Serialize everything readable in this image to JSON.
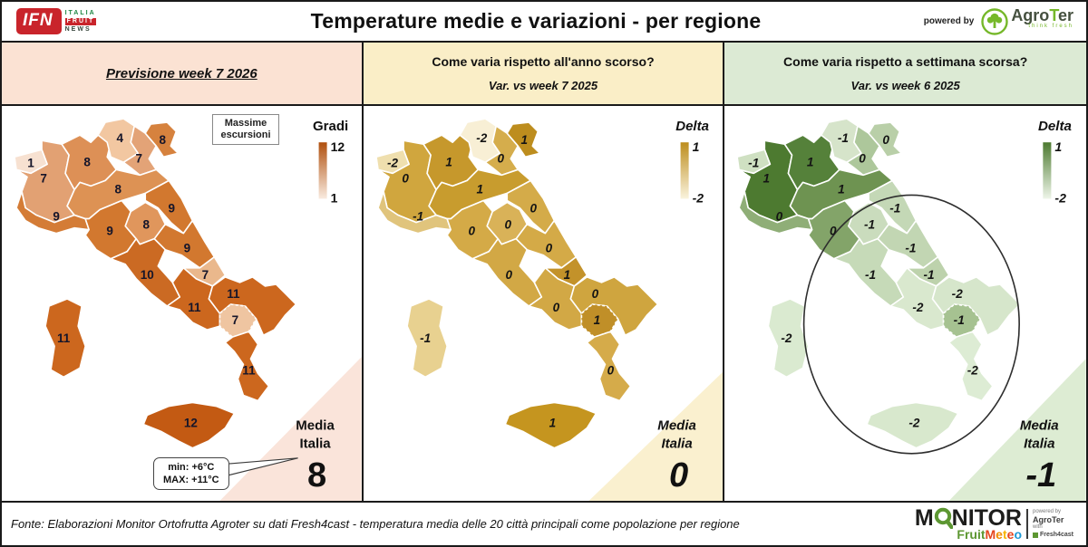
{
  "header": {
    "title": "Temperature medie e variazioni - per regione",
    "powered_by": "powered by",
    "ifn_logo": {
      "text": "IFN",
      "lines": [
        "ITALIA",
        "FRUIT",
        "NEWS"
      ],
      "red": "#c9242b",
      "green": "#1e8744",
      "dark": "#37463c"
    },
    "agroter": {
      "agro": "Agro",
      "t": "T",
      "er": "er",
      "tagline": "think fresh",
      "green": "#76b82a",
      "dark": "#45503f"
    }
  },
  "panels": [
    {
      "header": {
        "line1": "Previsione week 7 2026",
        "line2": "",
        "bg": "#fbe2d3"
      },
      "legend": {
        "title": "Gradi",
        "top_label": "12",
        "bottom_label": "1",
        "top_color": "#b0500e",
        "bottom_color": "#f9ebe0",
        "italic": false
      },
      "media": {
        "label_line1": "Media",
        "label_line2": "Italia",
        "value": "8",
        "italic": false,
        "triangle_color": "#fae4da"
      },
      "note_box": {
        "line1": "Massime",
        "line2": "escursioni"
      },
      "callout": {
        "line1": "min: +6°C",
        "line2": "MAX: +11°C"
      },
      "has_note_box": true,
      "has_callout": true,
      "has_ellipse": false,
      "label_italic": false,
      "label_color": "#15152a",
      "regions": {
        "valle_daosta": {
          "value": "1",
          "color": "#f7e1d1"
        },
        "piemonte": {
          "value": "7",
          "color": "#e2a173"
        },
        "lombardia": {
          "value": "8",
          "color": "#dd9056"
        },
        "trentino": {
          "value": "4",
          "color": "#f2c7a1"
        },
        "veneto": {
          "value": "7",
          "color": "#e3a377"
        },
        "friuli": {
          "value": "8",
          "color": "#d6823e"
        },
        "liguria": {
          "value": "9",
          "color": "#d47c36"
        },
        "emilia": {
          "value": "8",
          "color": "#dd9254"
        },
        "toscana": {
          "value": "9",
          "color": "#d2782f"
        },
        "marche": {
          "value": "9",
          "color": "#d2782f"
        },
        "umbria": {
          "value": "8",
          "color": "#e0965c"
        },
        "lazio": {
          "value": "10",
          "color": "#cb6a23"
        },
        "abruzzo": {
          "value": "9",
          "color": "#d2782f"
        },
        "molise": {
          "value": "7",
          "color": "#eab88c"
        },
        "campania": {
          "value": "11",
          "color": "#cc671e"
        },
        "puglia": {
          "value": "11",
          "color": "#cc671e"
        },
        "basilicata": {
          "value": "7",
          "color": "#efc5a1"
        },
        "calabria": {
          "value": "11",
          "color": "#cc671e"
        },
        "sicilia": {
          "value": "12",
          "color": "#c35a13"
        },
        "sardegna": {
          "value": "11",
          "color": "#cc671e"
        }
      }
    },
    {
      "header": {
        "line1": "Come varia rispetto all'anno scorso?",
        "line2": "Var. vs week 7 2025",
        "bg": "#faeec7"
      },
      "legend": {
        "title": "Delta",
        "top_label": "1",
        "bottom_label": "-2",
        "top_color": "#bd8d1d",
        "bottom_color": "#faf3dd",
        "italic": true
      },
      "media": {
        "label_line1": "Media",
        "label_line2": "Italia",
        "value": "0",
        "italic": true,
        "triangle_color": "#faf0cf"
      },
      "has_note_box": false,
      "has_callout": false,
      "has_ellipse": false,
      "label_italic": true,
      "label_color": "#141414",
      "regions": {
        "valle_daosta": {
          "value": "-2",
          "color": "#efdfae"
        },
        "piemonte": {
          "value": "0",
          "color": "#d0a63e"
        },
        "lombardia": {
          "value": "1",
          "color": "#c6982c"
        },
        "trentino": {
          "value": "-2",
          "color": "#f8efd5"
        },
        "veneto": {
          "value": "0",
          "color": "#d5ad4c"
        },
        "friuli": {
          "value": "1",
          "color": "#bd8d1e"
        },
        "liguria": {
          "value": "-1",
          "color": "#e0c47c"
        },
        "emilia": {
          "value": "1",
          "color": "#c89c2e"
        },
        "toscana": {
          "value": "0",
          "color": "#d4aa47"
        },
        "marche": {
          "value": "0",
          "color": "#d4ab49"
        },
        "umbria": {
          "value": "0",
          "color": "#d9b258"
        },
        "lazio": {
          "value": "0",
          "color": "#d2a845"
        },
        "abruzzo": {
          "value": "0",
          "color": "#d4aa47"
        },
        "molise": {
          "value": "1",
          "color": "#c3922a"
        },
        "campania": {
          "value": "0",
          "color": "#d2a845"
        },
        "puglia": {
          "value": "0",
          "color": "#cfa53f"
        },
        "basilicata": {
          "value": "1",
          "color": "#c08f28"
        },
        "calabria": {
          "value": "0",
          "color": "#d5ab4a"
        },
        "sicilia": {
          "value": "1",
          "color": "#c5951f"
        },
        "sardegna": {
          "value": "-1",
          "color": "#e8d190"
        }
      }
    },
    {
      "header": {
        "line1": "Come varia rispetto a settimana scorsa?",
        "line2": "Var. vs week 6 2025",
        "bg": "#dcead4"
      },
      "legend": {
        "title": "Delta",
        "top_label": "1",
        "bottom_label": "-2",
        "top_color": "#4d7a30",
        "bottom_color": "#eef5e9",
        "italic": true
      },
      "media": {
        "label_line1": "Media",
        "label_line2": "Italia",
        "value": "-1",
        "italic": true,
        "triangle_color": "#ddecd3"
      },
      "has_note_box": false,
      "has_callout": false,
      "has_ellipse": true,
      "label_italic": true,
      "label_color": "#141414",
      "regions": {
        "valle_daosta": {
          "value": "-1",
          "color": "#cfe0c2"
        },
        "piemonte": {
          "value": "1",
          "color": "#4d7a30"
        },
        "lombardia": {
          "value": "1",
          "color": "#55813a"
        },
        "trentino": {
          "value": "-1",
          "color": "#d6e4ca"
        },
        "veneto": {
          "value": "0",
          "color": "#adc79b"
        },
        "friuli": {
          "value": "0",
          "color": "#b9cfa8"
        },
        "liguria": {
          "value": "0",
          "color": "#8fae77"
        },
        "emilia": {
          "value": "1",
          "color": "#6e9351"
        },
        "toscana": {
          "value": "0",
          "color": "#83a469"
        },
        "marche": {
          "value": "-1",
          "color": "#c4d8b6"
        },
        "umbria": {
          "value": "-1",
          "color": "#cadcbd"
        },
        "lazio": {
          "value": "-1",
          "color": "#c6dab8"
        },
        "abruzzo": {
          "value": "-1",
          "color": "#c2d6b3"
        },
        "molise": {
          "value": "-1",
          "color": "#bdd2ac"
        },
        "campania": {
          "value": "-2",
          "color": "#d9e8ce"
        },
        "puglia": {
          "value": "-2",
          "color": "#d6e6cb"
        },
        "basilicata": {
          "value": "-1",
          "color": "#a6c291"
        },
        "calabria": {
          "value": "-2",
          "color": "#ddecd4"
        },
        "sicilia": {
          "value": "-2",
          "color": "#d8e8cd"
        },
        "sardegna": {
          "value": "-2",
          "color": "#daead0"
        }
      }
    }
  ],
  "footer": {
    "fonte": "Fonte: Elaborazioni Monitor Ortofrutta Agroter su dati Fresh4cast - temperatura media delle 20 città principali come popolazione per regione",
    "monitor": {
      "m": "M",
      "rest": "NITOR",
      "green": "#5d9732",
      "fruit": "Fruit",
      "meteo_letters": [
        {
          "ch": "M",
          "color": "#e5451d"
        },
        {
          "ch": "e",
          "color": "#f08c00"
        },
        {
          "ch": "t",
          "color": "#f7b500"
        },
        {
          "ch": "e",
          "color": "#e5451d"
        },
        {
          "ch": "o",
          "color": "#1f9ad6"
        }
      ],
      "side": {
        "powered": "powered by",
        "agroter": "AgroTer",
        "with": "with",
        "fresh": "Fresh4cast"
      }
    }
  },
  "chart_data": [
    {
      "type": "choropleth",
      "title": "Previsione week 7 2026",
      "legend_title": "Gradi",
      "scale": {
        "min": 1,
        "max": 12
      },
      "media_italia": 8,
      "extremes": {
        "min": "+6°C",
        "max": "+11°C"
      },
      "note": "Massime escursioni",
      "values": {
        "Valle d'Aosta": 1,
        "Piemonte": 7,
        "Lombardia": 8,
        "Trentino-Alto Adige": 4,
        "Veneto": 7,
        "Friuli-Venezia Giulia": 8,
        "Liguria": 9,
        "Emilia-Romagna": 8,
        "Toscana": 9,
        "Marche": 9,
        "Umbria": 8,
        "Lazio": 10,
        "Abruzzo": 9,
        "Molise": 7,
        "Campania": 11,
        "Puglia": 11,
        "Basilicata": 7,
        "Calabria": 11,
        "Sicilia": 12,
        "Sardegna": 11
      }
    },
    {
      "type": "choropleth",
      "title": "Var. vs week 7 2025",
      "legend_title": "Delta",
      "scale": {
        "min": -2,
        "max": 1
      },
      "media_italia": 0,
      "values": {
        "Valle d'Aosta": -2,
        "Piemonte": 0,
        "Lombardia": 1,
        "Trentino-Alto Adige": -2,
        "Veneto": 0,
        "Friuli-Venezia Giulia": 1,
        "Liguria": -1,
        "Emilia-Romagna": 1,
        "Toscana": 0,
        "Marche": 0,
        "Umbria": 0,
        "Lazio": 0,
        "Abruzzo": 0,
        "Molise": 1,
        "Campania": 0,
        "Puglia": 0,
        "Basilicata": 1,
        "Calabria": 0,
        "Sicilia": 1,
        "Sardegna": -1
      }
    },
    {
      "type": "choropleth",
      "title": "Var. vs week 6 2025",
      "legend_title": "Delta",
      "scale": {
        "min": -2,
        "max": 1
      },
      "media_italia": -1,
      "annotation": "ellipse highlighting centre-south regions",
      "values": {
        "Valle d'Aosta": -1,
        "Piemonte": 1,
        "Lombardia": 1,
        "Trentino-Alto Adige": -1,
        "Veneto": 0,
        "Friuli-Venezia Giulia": 0,
        "Liguria": 0,
        "Emilia-Romagna": 1,
        "Toscana": 0,
        "Marche": -1,
        "Umbria": -1,
        "Lazio": -1,
        "Abruzzo": -1,
        "Molise": -1,
        "Campania": -2,
        "Puglia": -2,
        "Basilicata": -1,
        "Calabria": -2,
        "Sicilia": -2,
        "Sardegna": -2
      }
    }
  ]
}
